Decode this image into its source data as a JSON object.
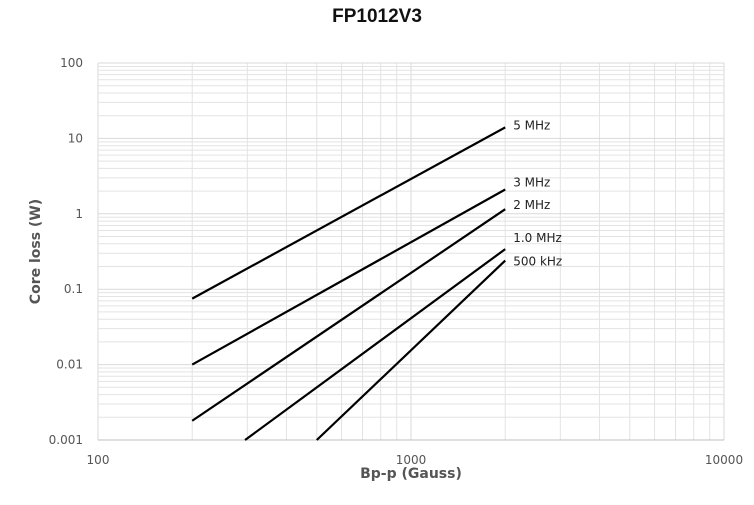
{
  "chart_data": {
    "type": "line",
    "title": "FP1012V3",
    "xlabel": "Bp-p (Gauss)",
    "ylabel": "Core loss (W)",
    "xscale": "log",
    "yscale": "log",
    "xlim": [
      100,
      10000
    ],
    "ylim": [
      0.001,
      100
    ],
    "xticks": [
      "100",
      "1000",
      "10000"
    ],
    "yticks": [
      "0.001",
      "0.01",
      "0.1",
      "1",
      "10",
      "100"
    ],
    "grid": true,
    "legend": "none",
    "series": [
      {
        "name": "5 MHz",
        "x": [
          200,
          2000
        ],
        "y": [
          0.075,
          14
        ]
      },
      {
        "name": "3 MHz",
        "x": [
          200,
          2000
        ],
        "y": [
          0.01,
          2.1
        ]
      },
      {
        "name": "2 MHz",
        "x": [
          200,
          2000
        ],
        "y": [
          0.0018,
          1.15
        ]
      },
      {
        "name": "1.0 MHz",
        "x": [
          295,
          2000
        ],
        "y": [
          0.001,
          0.34
        ]
      },
      {
        "name": "500 kHz",
        "x": [
          500,
          2000
        ],
        "y": [
          0.001,
          0.24
        ]
      }
    ],
    "line_color": "#000000",
    "grid_color": "#e3e3e3"
  }
}
